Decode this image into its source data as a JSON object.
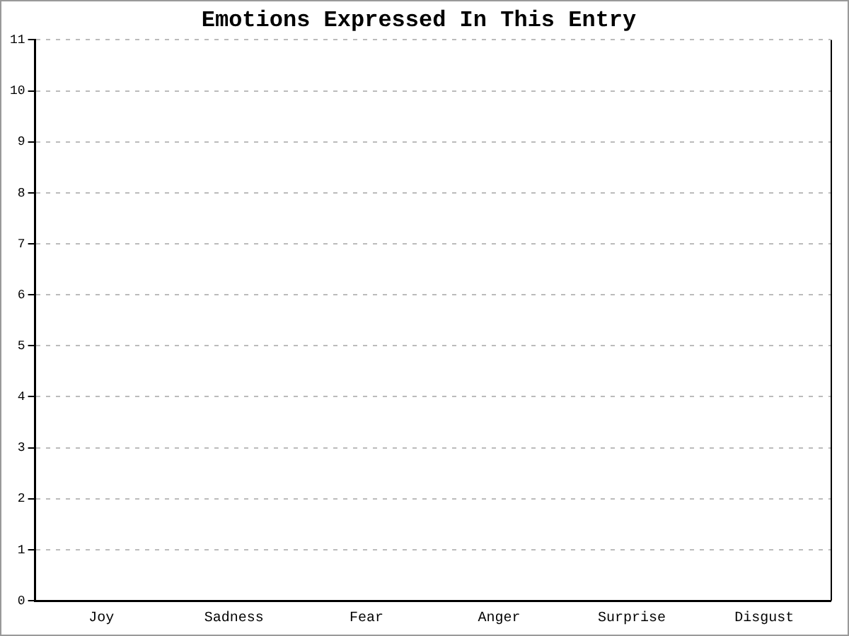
{
  "chart_data": {
    "type": "bar",
    "title": "Emotions Expressed In This Entry",
    "categories": [
      "Joy",
      "Sadness",
      "Fear",
      "Anger",
      "Surprise",
      "Disgust"
    ],
    "values": [
      0,
      0,
      0,
      0,
      0,
      0
    ],
    "ylim": [
      0,
      11
    ],
    "yticks": [
      0,
      1,
      2,
      3,
      4,
      5,
      6,
      7,
      8,
      9,
      10,
      11
    ],
    "grid": "y",
    "legend": false
  }
}
